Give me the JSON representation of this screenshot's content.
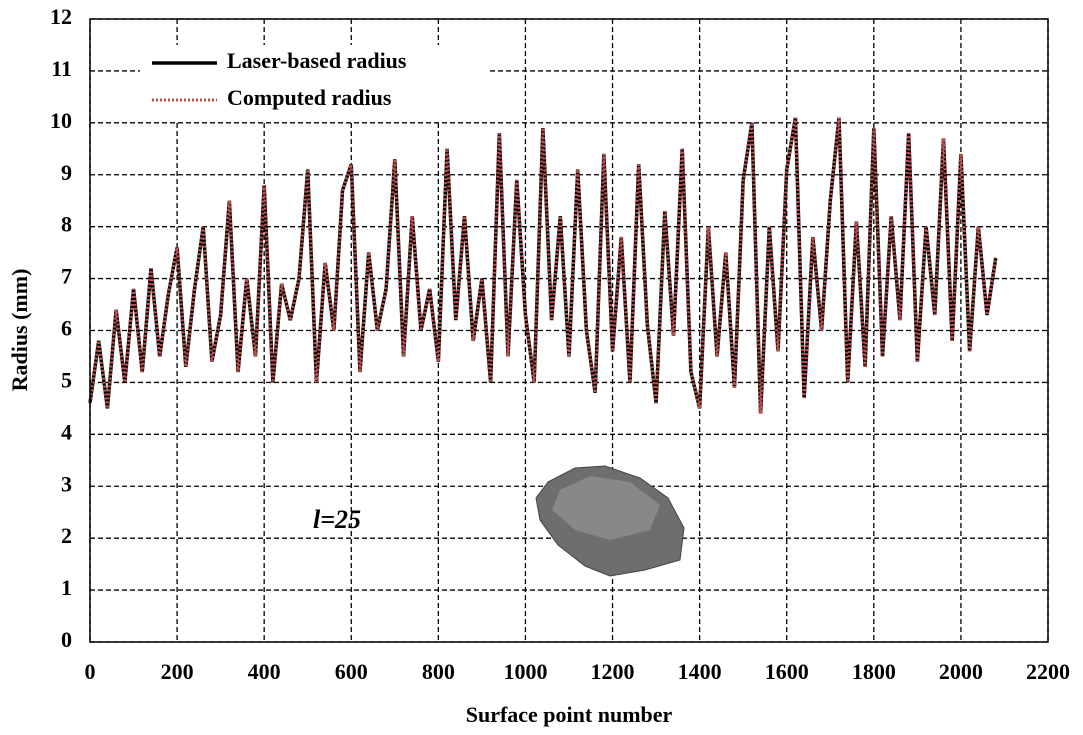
{
  "chart_data": {
    "type": "line",
    "xlabel": "Surface point number",
    "ylabel": "Radius (mm)",
    "annotation": "l=25",
    "x": [
      0,
      20,
      40,
      60,
      80,
      100,
      120,
      140,
      160,
      180,
      200,
      220,
      240,
      260,
      280,
      300,
      320,
      340,
      360,
      380,
      400,
      420,
      440,
      460,
      480,
      500,
      520,
      540,
      560,
      580,
      600,
      620,
      640,
      660,
      680,
      700,
      720,
      740,
      760,
      780,
      800,
      820,
      840,
      860,
      880,
      900,
      920,
      940,
      960,
      980,
      1000,
      1020,
      1040,
      1060,
      1080,
      1100,
      1120,
      1140,
      1160,
      1180,
      1200,
      1220,
      1240,
      1260,
      1280,
      1300,
      1320,
      1340,
      1360,
      1380,
      1400,
      1420,
      1440,
      1460,
      1480,
      1500,
      1520,
      1540,
      1560,
      1580,
      1600,
      1620,
      1640,
      1660,
      1680,
      1700,
      1720,
      1740,
      1760,
      1780,
      1800,
      1820,
      1840,
      1860,
      1880,
      1900,
      1920,
      1940,
      1960,
      1980,
      2000,
      2020,
      2040,
      2060,
      2080
    ],
    "series": [
      {
        "name": "Laser-based radius",
        "color": "#000000",
        "style": "solid",
        "values": [
          4.6,
          5.8,
          4.5,
          6.4,
          5.0,
          6.8,
          5.2,
          7.2,
          5.5,
          6.7,
          7.6,
          5.3,
          6.8,
          8.0,
          5.4,
          6.3,
          8.5,
          5.2,
          7.0,
          5.5,
          8.8,
          5.0,
          6.9,
          6.2,
          7.0,
          9.1,
          5.0,
          7.3,
          6.0,
          8.7,
          9.2,
          5.2,
          7.5,
          6.0,
          6.8,
          9.3,
          5.5,
          8.2,
          6.0,
          6.8,
          5.4,
          9.5,
          6.2,
          8.2,
          5.8,
          7.0,
          5.0,
          9.8,
          5.5,
          8.9,
          6.3,
          5.0,
          9.9,
          6.2,
          8.2,
          5.5,
          9.1,
          6.0,
          4.8,
          9.4,
          5.6,
          7.8,
          5.0,
          9.2,
          6.1,
          4.6,
          8.3,
          5.9,
          9.5,
          5.2,
          4.5,
          8.0,
          5.5,
          7.5,
          4.9,
          8.9,
          10.0,
          4.4,
          8.0,
          5.6,
          9.1,
          10.1,
          4.7,
          7.8,
          6.0,
          8.5,
          10.1,
          5.0,
          8.1,
          5.3,
          9.9,
          5.5,
          8.2,
          6.2,
          9.8,
          5.4,
          8.0,
          6.3,
          9.7,
          5.8,
          9.4,
          5.6,
          8.0,
          6.3,
          7.4
        ]
      },
      {
        "name": "Computed radius",
        "color": "#c0504d",
        "style": "dotted",
        "values": [
          4.6,
          5.8,
          4.5,
          6.4,
          5.0,
          6.8,
          5.2,
          7.2,
          5.5,
          6.7,
          7.6,
          5.3,
          6.8,
          8.0,
          5.4,
          6.3,
          8.5,
          5.2,
          7.0,
          5.5,
          8.8,
          5.0,
          6.9,
          6.2,
          7.0,
          9.1,
          5.0,
          7.3,
          6.0,
          8.7,
          9.2,
          5.2,
          7.5,
          6.0,
          6.8,
          9.3,
          5.5,
          8.2,
          6.0,
          6.8,
          5.4,
          9.5,
          6.2,
          8.2,
          5.8,
          7.0,
          5.0,
          9.8,
          5.5,
          8.9,
          6.3,
          5.0,
          9.9,
          6.2,
          8.2,
          5.5,
          9.1,
          6.0,
          4.8,
          9.4,
          5.6,
          7.8,
          5.0,
          9.2,
          6.1,
          4.6,
          8.3,
          5.9,
          9.5,
          5.2,
          4.5,
          8.0,
          5.5,
          7.5,
          4.9,
          8.9,
          10.0,
          4.4,
          8.0,
          5.6,
          9.1,
          10.1,
          4.7,
          7.8,
          6.0,
          8.5,
          10.1,
          5.0,
          8.1,
          5.3,
          9.9,
          5.5,
          8.2,
          6.2,
          9.8,
          5.4,
          8.0,
          6.3,
          9.7,
          5.8,
          9.4,
          5.6,
          8.0,
          6.3,
          7.4
        ]
      }
    ],
    "xlim": [
      0,
      2200
    ],
    "xticks": [
      0,
      200,
      400,
      600,
      800,
      1000,
      1200,
      1400,
      1600,
      1800,
      2000,
      2200
    ],
    "ylim": [
      0,
      12
    ],
    "yticks": [
      0,
      1,
      2,
      3,
      4,
      5,
      6,
      7,
      8,
      9,
      10,
      11,
      12
    ],
    "grid": true,
    "legend": "upper left"
  }
}
